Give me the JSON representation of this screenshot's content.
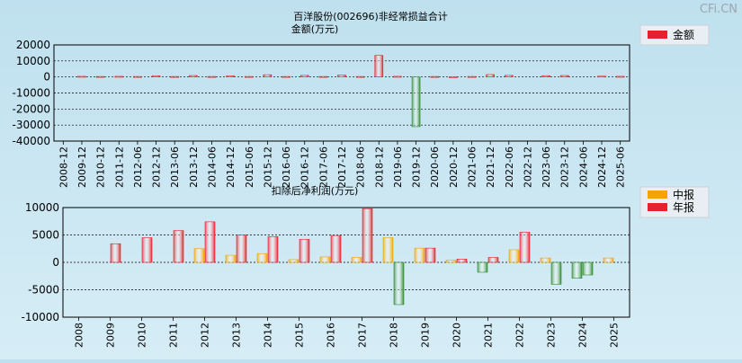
{
  "watermark": "CFi.CN",
  "colors": {
    "red": "#e8202a",
    "green": "#2e8a2e",
    "orange": "#f2a400"
  },
  "chart_data": [
    {
      "type": "bar",
      "title": "百洋股份(002696)非经常损益合计",
      "subtitle": "金额(万元)",
      "legend": [
        {
          "name": "金额",
          "color": "#e8202a"
        }
      ],
      "legend_position": "top-right",
      "ylim": [
        -40000,
        20000
      ],
      "yticks": [
        20000,
        10000,
        0,
        -10000,
        -20000,
        -30000,
        -40000
      ],
      "grid": true,
      "categories": [
        "2008-12",
        "2009-12",
        "2010-12",
        "2011-12",
        "2012-06",
        "2012-12",
        "2013-06",
        "2013-12",
        "2014-06",
        "2014-12",
        "2015-06",
        "2015-12",
        "2016-06",
        "2016-12",
        "2017-06",
        "2017-12",
        "2018-06",
        "2018-12",
        "2019-06",
        "2019-12",
        "2020-06",
        "2020-12",
        "2021-06",
        "2021-12",
        "2022-06",
        "2022-12",
        "2023-06",
        "2023-12",
        "2024-06",
        "2024-12",
        "2025-06"
      ],
      "values": [
        0,
        400,
        300,
        400,
        300,
        700,
        300,
        900,
        300,
        700,
        300,
        1400,
        300,
        1000,
        300,
        1200,
        300,
        13500,
        400,
        -31000,
        300,
        100,
        300,
        1500,
        1000,
        0,
        800,
        900,
        0,
        500,
        400
      ]
    },
    {
      "type": "bar",
      "title": "扣除后净利润(万元)",
      "legend": [
        {
          "name": "中报",
          "color": "#f2a400"
        },
        {
          "name": "年报",
          "color": "#e8202a"
        }
      ],
      "legend_position": "top-right",
      "ylim": [
        -10000,
        10000
      ],
      "yticks": [
        10000,
        5000,
        0,
        -5000,
        -10000
      ],
      "grid": true,
      "categories": [
        "2008",
        "2009",
        "2010",
        "2011",
        "2012",
        "2013",
        "2014",
        "2015",
        "2016",
        "2017",
        "2018",
        "2019",
        "2020",
        "2021",
        "2022",
        "2023",
        "2024",
        "2025"
      ],
      "series": [
        {
          "name": "中报",
          "values": [
            null,
            null,
            null,
            null,
            2500,
            1300,
            1600,
            500,
            1000,
            900,
            4500,
            2600,
            400,
            -1800,
            2300,
            800,
            -2900,
            800
          ]
        },
        {
          "name": "年报",
          "values": [
            null,
            3400,
            4500,
            5800,
            7400,
            5000,
            4700,
            4200,
            4900,
            9800,
            -7700,
            2600,
            600,
            900,
            5500,
            -4000,
            -2300,
            null
          ]
        }
      ]
    }
  ]
}
